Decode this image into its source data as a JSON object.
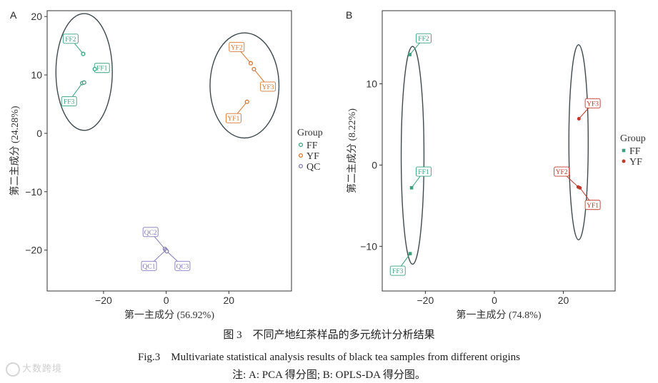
{
  "chart_data": [
    {
      "type": "scatter",
      "panel_label": "A",
      "xlabel": "第一主成分 (56.92%)",
      "ylabel": "第二主成分 (24.28%)",
      "xlim": [
        -38,
        40
      ],
      "ylim": [
        -27,
        21
      ],
      "xticks": [
        -20,
        0,
        20
      ],
      "yticks": [
        -20,
        -10,
        0,
        10,
        20
      ],
      "xtick_labels": [
        "−20",
        "0",
        "20"
      ],
      "ytick_labels": [
        "−20",
        "−10",
        "0",
        "10",
        "20"
      ],
      "legend": {
        "title": "Group",
        "position": "right",
        "entries": [
          "FF",
          "YF",
          "QC"
        ]
      },
      "series": [
        {
          "name": "FF",
          "color": "#3aa17e",
          "points": [
            {
              "x": -26.5,
              "y": 13.6
            },
            {
              "x": -22.8,
              "y": 11.0
            },
            {
              "x": -26.8,
              "y": 8.6
            },
            {
              "x": -26.2,
              "y": 8.7
            }
          ],
          "labels": [
            {
              "text": "FF2",
              "x": -30.5,
              "y": 16.2,
              "px": -26.5,
              "py": 13.6
            },
            {
              "text": "FF1",
              "x": -20.5,
              "y": 11.2,
              "px": -22.8,
              "py": 11.0
            },
            {
              "text": "FF3",
              "x": -31.0,
              "y": 5.5,
              "px": -26.8,
              "py": 8.6
            }
          ]
        },
        {
          "name": "YF",
          "color": "#d9742c",
          "points": [
            {
              "x": 27.0,
              "y": 12.0
            },
            {
              "x": 28.0,
              "y": 11.0
            },
            {
              "x": 25.8,
              "y": 5.4
            }
          ],
          "labels": [
            {
              "text": "YF2",
              "x": 22.5,
              "y": 14.8,
              "px": 27.0,
              "py": 12.0
            },
            {
              "text": "YF3",
              "x": 32.5,
              "y": 8.0,
              "px": 28.0,
              "py": 11.0
            },
            {
              "text": "YF1",
              "x": 21.5,
              "y": 2.6,
              "px": 25.8,
              "py": 5.4
            }
          ]
        },
        {
          "name": "QC",
          "color": "#8478b8",
          "points": [
            {
              "x": -0.4,
              "y": -19.8
            },
            {
              "x": -0.1,
              "y": -20.0
            },
            {
              "x": 0.2,
              "y": -20.2
            }
          ],
          "labels": [
            {
              "text": "QC2",
              "x": -5.0,
              "y": -16.9,
              "px": -0.4,
              "py": -19.8
            },
            {
              "text": "QC1",
              "x": -5.5,
              "y": -22.7,
              "px": -0.1,
              "py": -20.0
            },
            {
              "text": "QC3",
              "x": 5.2,
              "y": -22.7,
              "px": 0.2,
              "py": -20.2
            }
          ]
        }
      ],
      "ellipses": [
        {
          "group": "FF",
          "cx": -26.2,
          "cy": 10.5,
          "rx": 9.0,
          "ry": 10.0
        },
        {
          "group": "YF",
          "cx": 25.0,
          "cy": 8.2,
          "rx": 11.0,
          "ry": 9.0
        }
      ]
    },
    {
      "type": "scatter",
      "panel_label": "B",
      "xlabel": "第一主成分 (74.8%)",
      "ylabel": "第二主成分 (8.22%)",
      "xlim": [
        -32.5,
        35
      ],
      "ylim": [
        -15.5,
        19
      ],
      "xticks": [
        -20,
        0,
        20
      ],
      "yticks": [
        -10,
        0,
        10
      ],
      "xtick_labels": [
        "−20",
        "0",
        "20"
      ],
      "ytick_labels": [
        "−10",
        "0",
        "10"
      ],
      "legend": {
        "title": "Group",
        "position": "right",
        "entries": [
          "FF",
          "YF"
        ]
      },
      "series": [
        {
          "name": "FF",
          "color": "#3aa17e",
          "points": [
            {
              "x": -24.5,
              "y": 13.6
            },
            {
              "x": -24.0,
              "y": -2.8
            },
            {
              "x": -24.4,
              "y": -10.9
            }
          ],
          "labels": [
            {
              "text": "FF2",
              "x": -20.5,
              "y": 15.6,
              "px": -24.5,
              "py": 13.6
            },
            {
              "text": "FF1",
              "x": -20.5,
              "y": -0.8,
              "px": -24.0,
              "py": -2.8
            },
            {
              "text": "FF3",
              "x": -28.0,
              "y": -13.0,
              "px": -24.4,
              "py": -10.9
            }
          ]
        },
        {
          "name": "YF",
          "color": "#c0392b",
          "points": [
            {
              "x": 24.5,
              "y": 5.7
            },
            {
              "x": 24.3,
              "y": -2.7
            },
            {
              "x": 24.8,
              "y": -2.8
            }
          ],
          "labels": [
            {
              "text": "YF3",
              "x": 28.5,
              "y": 7.6,
              "px": 24.5,
              "py": 5.7
            },
            {
              "text": "YF2",
              "x": 19.5,
              "y": -0.8,
              "px": 24.3,
              "py": -2.7
            },
            {
              "text": "YF1",
              "x": 28.5,
              "y": -4.9,
              "px": 24.8,
              "py": -2.8
            }
          ]
        }
      ],
      "ellipses": [
        {
          "group": "FF",
          "cx": -23.7,
          "cy": 1.2,
          "rx": 3.3,
          "ry": 13.4
        },
        {
          "group": "YF",
          "cx": 24.4,
          "cy": 2.8,
          "rx": 2.8,
          "ry": 12.0
        }
      ]
    }
  ],
  "caption": {
    "chinese": "图 3　不同产地红茶样品的多元统计分析结果",
    "english": "Fig.3　Multivariate statistical analysis results of black tea samples from different origins",
    "note": "注: A: PCA 得分图; B: OPLS-DA 得分图。"
  },
  "watermark": "大数跨境"
}
